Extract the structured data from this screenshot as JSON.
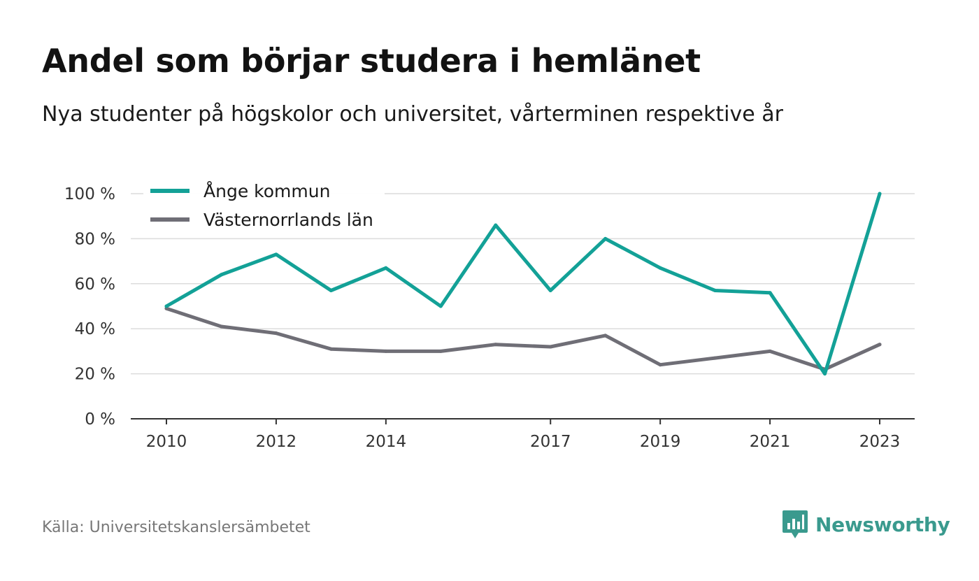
{
  "header": {
    "title": "Andel som börjar studera i hemlänet",
    "subtitle": "Nya studenter på högskolor och universitet, vårterminen respektive år"
  },
  "footer": {
    "source": "Källa: Universitetskanslersämbetet",
    "brand_name": "Newsworthy",
    "brand_color": "#3a9a8e"
  },
  "chart_data": {
    "type": "line",
    "x": [
      2010,
      2011,
      2012,
      2013,
      2014,
      2015,
      2016,
      2017,
      2018,
      2019,
      2020,
      2021,
      2022,
      2023
    ],
    "x_ticks": [
      "2010",
      "2012",
      "2014",
      "2017",
      "2019",
      "2021",
      "2023"
    ],
    "x_tick_values": [
      2010,
      2012,
      2014,
      2017,
      2019,
      2021,
      2023
    ],
    "y_ticks": [
      "0 %",
      "20 %",
      "40 %",
      "60 %",
      "80 %",
      "100 %"
    ],
    "y_tick_values": [
      0,
      20,
      40,
      60,
      80,
      100
    ],
    "ylim": [
      0,
      100
    ],
    "grid": true,
    "legend_position": "top-left",
    "series": [
      {
        "name": "Ånge kommun",
        "color": "#13a197",
        "values": [
          50,
          64,
          73,
          57,
          67,
          50,
          86,
          57,
          80,
          67,
          57,
          56,
          20,
          100
        ]
      },
      {
        "name": "Västernorrlands län",
        "color": "#6f6e76",
        "values": [
          49,
          41,
          38,
          31,
          30,
          30,
          33,
          32,
          37,
          24,
          27,
          30,
          22,
          33
        ]
      }
    ]
  }
}
